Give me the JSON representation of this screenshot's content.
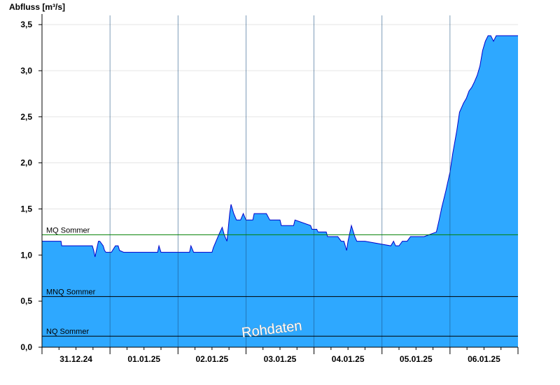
{
  "chart_data": {
    "type": "area",
    "ylabel": "Abfluss [m³/s]",
    "ylim": [
      0,
      3.6
    ],
    "yticks": [
      0,
      0.5,
      1.0,
      1.5,
      2.0,
      2.5,
      3.0,
      3.5
    ],
    "ytick_labels": [
      "0,0",
      "0,5",
      "1,0",
      "1,5",
      "2,0",
      "2,5",
      "3,0",
      "3,5"
    ],
    "xlim": [
      0,
      7
    ],
    "day_labels": [
      "31.12.24",
      "01.01.25",
      "02.01.25",
      "03.01.25",
      "04.01.25",
      "05.01.25",
      "06.01.25"
    ],
    "grid": true,
    "fill_color": "#2ea8ff",
    "line_color": "#0000cc",
    "reference_lines": [
      {
        "label": "MQ Sommer",
        "value": 1.22,
        "color": "#008000"
      },
      {
        "label": "MNQ Sommer",
        "value": 0.55,
        "color": "#000000"
      },
      {
        "label": "NQ Sommer",
        "value": 0.12,
        "color": "#000000"
      }
    ],
    "watermark": "Rohdaten",
    "series": [
      {
        "x": [
          0,
          0.28,
          0.29,
          0.74,
          0.76,
          0.78,
          0.8,
          0.83,
          0.85,
          0.9,
          0.92,
          0.94,
          1.0,
          1.02,
          1.08,
          1.12,
          1.14,
          1.2,
          1.25,
          1.7,
          1.72,
          1.75,
          1.77,
          2.17,
          2.19,
          2.23,
          2.25,
          2.5,
          2.52,
          2.56,
          2.6,
          2.65,
          2.68,
          2.72,
          2.76,
          2.78,
          2.82,
          2.86,
          2.92,
          2.96,
          3.0,
          3.03,
          3.1,
          3.12,
          3.3,
          3.35,
          3.5,
          3.52,
          3.7,
          3.72,
          3.95,
          3.97,
          4.04,
          4.06,
          4.18,
          4.2,
          4.35,
          4.4,
          4.44,
          4.48,
          4.5,
          4.55,
          4.6,
          4.63,
          4.68,
          4.75,
          5.13,
          5.17,
          5.2,
          5.25,
          5.3,
          5.37,
          5.42,
          5.6,
          5.62,
          5.8,
          5.84,
          5.88,
          5.94,
          6.0,
          6.04,
          6.1,
          6.14,
          6.2,
          6.24,
          6.28,
          6.32,
          6.36,
          6.4,
          6.44,
          6.48,
          6.52,
          6.56,
          6.6,
          6.64,
          6.68,
          6.72,
          6.76,
          6.8,
          6.84,
          6.88,
          6.92,
          6.94,
          7.0
        ],
        "y": [
          1.15,
          1.15,
          1.1,
          1.1,
          1.05,
          0.98,
          1.05,
          1.15,
          1.15,
          1.1,
          1.05,
          1.03,
          1.03,
          1.03,
          1.1,
          1.1,
          1.05,
          1.03,
          1.03,
          1.03,
          1.1,
          1.03,
          1.03,
          1.03,
          1.1,
          1.03,
          1.03,
          1.03,
          1.08,
          1.15,
          1.22,
          1.3,
          1.22,
          1.15,
          1.45,
          1.55,
          1.45,
          1.38,
          1.38,
          1.45,
          1.38,
          1.38,
          1.38,
          1.45,
          1.45,
          1.38,
          1.38,
          1.32,
          1.32,
          1.38,
          1.32,
          1.28,
          1.28,
          1.25,
          1.25,
          1.2,
          1.2,
          1.15,
          1.15,
          1.05,
          1.15,
          1.32,
          1.2,
          1.15,
          1.15,
          1.15,
          1.1,
          1.15,
          1.1,
          1.1,
          1.15,
          1.15,
          1.2,
          1.2,
          1.2,
          1.25,
          1.38,
          1.52,
          1.7,
          1.9,
          2.1,
          2.35,
          2.55,
          2.65,
          2.7,
          2.78,
          2.82,
          2.88,
          2.95,
          3.05,
          3.22,
          3.32,
          3.38,
          3.38,
          3.32,
          3.38,
          3.38,
          3.38,
          3.38,
          3.38,
          3.38,
          3.38,
          3.38,
          3.38
        ]
      }
    ]
  }
}
